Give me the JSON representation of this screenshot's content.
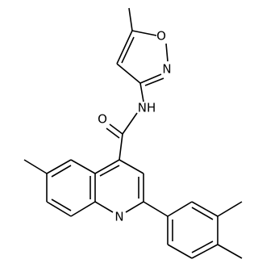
{
  "atoms": [
    {
      "label": "O"
    },
    {
      "label": "N"
    },
    {
      "label": "NH"
    },
    {
      "label": "O"
    },
    {
      "label": "N"
    }
  ]
}
